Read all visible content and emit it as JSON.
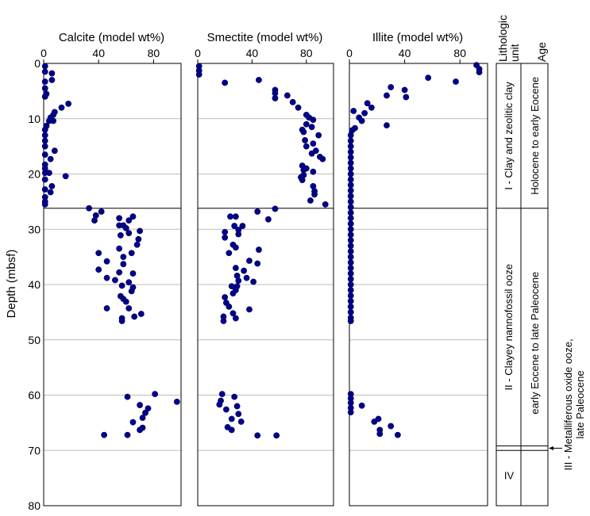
{
  "chart_data": {
    "type": "scatter",
    "ylabel": "Depth (mbsf)",
    "ylim": [
      0,
      80
    ],
    "yticks": [
      0,
      10,
      20,
      30,
      40,
      50,
      60,
      70,
      80
    ],
    "gridlines": [
      10,
      20,
      30,
      40,
      50,
      60,
      70
    ],
    "unit_boundaries": [
      26.2
    ],
    "marker_color": "#00008b",
    "panels": [
      {
        "name": "calcite",
        "title": "Calcite (model wt%)",
        "xlim": [
          0,
          100
        ],
        "xticks": [
          0,
          40,
          80
        ],
        "points": [
          {
            "x": 1,
            "y": 0.5
          },
          {
            "x": 1,
            "y": 1.5
          },
          {
            "x": 6,
            "y": 1.8
          },
          {
            "x": 6,
            "y": 3.0
          },
          {
            "x": 1,
            "y": 3.3
          },
          {
            "x": 1,
            "y": 4.5
          },
          {
            "x": 2,
            "y": 5.5
          },
          {
            "x": 1,
            "y": 6.0
          },
          {
            "x": 18,
            "y": 7.3
          },
          {
            "x": 13,
            "y": 8.0
          },
          {
            "x": 8,
            "y": 8.8
          },
          {
            "x": 7,
            "y": 9.3
          },
          {
            "x": 5,
            "y": 9.8
          },
          {
            "x": 4,
            "y": 10.4
          },
          {
            "x": 7,
            "y": 10.4
          },
          {
            "x": 2,
            "y": 11.3
          },
          {
            "x": 1,
            "y": 12.0
          },
          {
            "x": 1,
            "y": 13.0
          },
          {
            "x": 1,
            "y": 14.0
          },
          {
            "x": 1,
            "y": 15.0
          },
          {
            "x": 8,
            "y": 15.8
          },
          {
            "x": 1,
            "y": 16.5
          },
          {
            "x": 5,
            "y": 17.3
          },
          {
            "x": 1,
            "y": 18.3
          },
          {
            "x": 1,
            "y": 19.0
          },
          {
            "x": 1,
            "y": 19.8
          },
          {
            "x": 4,
            "y": 19.8
          },
          {
            "x": 16,
            "y": 20.4
          },
          {
            "x": 1,
            "y": 21.0
          },
          {
            "x": 6,
            "y": 22.2
          },
          {
            "x": 1,
            "y": 22.8
          },
          {
            "x": 5,
            "y": 23.3
          },
          {
            "x": 1,
            "y": 24.2
          },
          {
            "x": 1,
            "y": 25.0
          },
          {
            "x": 1,
            "y": 25.5
          },
          {
            "x": 33,
            "y": 26.2
          },
          {
            "x": 42,
            "y": 26.8
          },
          {
            "x": 38,
            "y": 27.5
          },
          {
            "x": 65,
            "y": 27.7
          },
          {
            "x": 55,
            "y": 28.0
          },
          {
            "x": 37,
            "y": 28.4
          },
          {
            "x": 62,
            "y": 28.4
          },
          {
            "x": 55,
            "y": 29.3
          },
          {
            "x": 58,
            "y": 29.3
          },
          {
            "x": 60,
            "y": 29.8
          },
          {
            "x": 70,
            "y": 30.3
          },
          {
            "x": 62,
            "y": 30.7
          },
          {
            "x": 56,
            "y": 31.1
          },
          {
            "x": 69,
            "y": 31.8
          },
          {
            "x": 68,
            "y": 32.8
          },
          {
            "x": 55,
            "y": 33.5
          },
          {
            "x": 40,
            "y": 34.3
          },
          {
            "x": 64,
            "y": 34.3
          },
          {
            "x": 58,
            "y": 35.0
          },
          {
            "x": 46,
            "y": 35.8
          },
          {
            "x": 58,
            "y": 36.3
          },
          {
            "x": 40,
            "y": 37.3
          },
          {
            "x": 55,
            "y": 37.8
          },
          {
            "x": 65,
            "y": 38.0
          },
          {
            "x": 46,
            "y": 38.8
          },
          {
            "x": 52,
            "y": 39.2
          },
          {
            "x": 62,
            "y": 39.6
          },
          {
            "x": 57,
            "y": 40.2
          },
          {
            "x": 65,
            "y": 40.5
          },
          {
            "x": 64,
            "y": 41.2
          },
          {
            "x": 56,
            "y": 42.1
          },
          {
            "x": 58,
            "y": 42.6
          },
          {
            "x": 60,
            "y": 43.1
          },
          {
            "x": 46,
            "y": 44.3
          },
          {
            "x": 62,
            "y": 44.3
          },
          {
            "x": 71,
            "y": 45.3
          },
          {
            "x": 66,
            "y": 45.8
          },
          {
            "x": 57,
            "y": 46.1
          },
          {
            "x": 57,
            "y": 46.6
          },
          {
            "x": 61,
            "y": 60.3
          },
          {
            "x": 81,
            "y": 59.8
          },
          {
            "x": 97,
            "y": 61.2
          },
          {
            "x": 70,
            "y": 61.8
          },
          {
            "x": 76,
            "y": 62.4
          },
          {
            "x": 74,
            "y": 63.2
          },
          {
            "x": 72,
            "y": 64.1
          },
          {
            "x": 65,
            "y": 64.9
          },
          {
            "x": 72,
            "y": 65.9
          },
          {
            "x": 70,
            "y": 66.3
          },
          {
            "x": 44,
            "y": 67.2
          },
          {
            "x": 61,
            "y": 67.2
          }
        ]
      },
      {
        "name": "smectite",
        "title": "Smectite (model wt%)",
        "xlim": [
          0,
          100
        ],
        "xticks": [
          0,
          40,
          80
        ],
        "points": [
          {
            "x": 1,
            "y": 0.5
          },
          {
            "x": 1,
            "y": 1.3
          },
          {
            "x": 1,
            "y": 2.0
          },
          {
            "x": 45,
            "y": 3.0
          },
          {
            "x": 20,
            "y": 3.5
          },
          {
            "x": 57,
            "y": 4.8
          },
          {
            "x": 57,
            "y": 5.4
          },
          {
            "x": 66,
            "y": 5.8
          },
          {
            "x": 57,
            "y": 6.3
          },
          {
            "x": 70,
            "y": 7.0
          },
          {
            "x": 74,
            "y": 8.0
          },
          {
            "x": 80,
            "y": 9.3
          },
          {
            "x": 82,
            "y": 9.8
          },
          {
            "x": 85,
            "y": 10.2
          },
          {
            "x": 80,
            "y": 11.0
          },
          {
            "x": 84,
            "y": 11.5
          },
          {
            "x": 77,
            "y": 12.0
          },
          {
            "x": 78,
            "y": 12.4
          },
          {
            "x": 89,
            "y": 13.0
          },
          {
            "x": 79,
            "y": 13.9
          },
          {
            "x": 85,
            "y": 14.5
          },
          {
            "x": 80,
            "y": 15.0
          },
          {
            "x": 87,
            "y": 15.8
          },
          {
            "x": 84,
            "y": 16.3
          },
          {
            "x": 90,
            "y": 16.9
          },
          {
            "x": 92,
            "y": 17.3
          },
          {
            "x": 77,
            "y": 18.5
          },
          {
            "x": 80,
            "y": 19.0
          },
          {
            "x": 78,
            "y": 19.3
          },
          {
            "x": 85,
            "y": 19.6
          },
          {
            "x": 78,
            "y": 20.2
          },
          {
            "x": 76,
            "y": 20.6
          },
          {
            "x": 77,
            "y": 21.1
          },
          {
            "x": 85,
            "y": 22.2
          },
          {
            "x": 86,
            "y": 23.1
          },
          {
            "x": 86,
            "y": 23.7
          },
          {
            "x": 83,
            "y": 24.8
          },
          {
            "x": 94,
            "y": 25.5
          },
          {
            "x": 57,
            "y": 26.3
          },
          {
            "x": 44,
            "y": 26.8
          },
          {
            "x": 24,
            "y": 27.7
          },
          {
            "x": 28,
            "y": 27.7
          },
          {
            "x": 52,
            "y": 28.2
          },
          {
            "x": 27,
            "y": 29.4
          },
          {
            "x": 33,
            "y": 29.4
          },
          {
            "x": 30,
            "y": 30.1
          },
          {
            "x": 20,
            "y": 30.5
          },
          {
            "x": 30,
            "y": 30.9
          },
          {
            "x": 20,
            "y": 31.5
          },
          {
            "x": 26,
            "y": 32.8
          },
          {
            "x": 28,
            "y": 33.3
          },
          {
            "x": 45,
            "y": 33.7
          },
          {
            "x": 23,
            "y": 34.3
          },
          {
            "x": 38,
            "y": 35.7
          },
          {
            "x": 44,
            "y": 36.2
          },
          {
            "x": 28,
            "y": 37.0
          },
          {
            "x": 34,
            "y": 37.5
          },
          {
            "x": 29,
            "y": 38.4
          },
          {
            "x": 36,
            "y": 38.8
          },
          {
            "x": 30,
            "y": 39.3
          },
          {
            "x": 41,
            "y": 39.5
          },
          {
            "x": 25,
            "y": 40.3
          },
          {
            "x": 29,
            "y": 40.3
          },
          {
            "x": 28,
            "y": 41.0
          },
          {
            "x": 26,
            "y": 41.6
          },
          {
            "x": 20,
            "y": 42.3
          },
          {
            "x": 21,
            "y": 43.3
          },
          {
            "x": 23,
            "y": 44.0
          },
          {
            "x": 38,
            "y": 44.5
          },
          {
            "x": 26,
            "y": 45.2
          },
          {
            "x": 19,
            "y": 45.8
          },
          {
            "x": 28,
            "y": 46.1
          },
          {
            "x": 19,
            "y": 46.6
          },
          {
            "x": 18,
            "y": 59.8
          },
          {
            "x": 27,
            "y": 60.3
          },
          {
            "x": 17,
            "y": 61.0
          },
          {
            "x": 16,
            "y": 61.7
          },
          {
            "x": 29,
            "y": 62.0
          },
          {
            "x": 21,
            "y": 62.6
          },
          {
            "x": 30,
            "y": 63.4
          },
          {
            "x": 25,
            "y": 64.3
          },
          {
            "x": 32,
            "y": 64.8
          },
          {
            "x": 22,
            "y": 65.8
          },
          {
            "x": 25,
            "y": 66.3
          },
          {
            "x": 44,
            "y": 67.3
          },
          {
            "x": 58,
            "y": 67.3
          }
        ]
      },
      {
        "name": "illite",
        "title": "Illite (model wt%)",
        "xlim": [
          0,
          100
        ],
        "xticks": [
          0,
          40,
          80
        ],
        "points": [
          {
            "x": 92,
            "y": 0.3
          },
          {
            "x": 94,
            "y": 1.0
          },
          {
            "x": 94,
            "y": 1.6
          },
          {
            "x": 57,
            "y": 2.6
          },
          {
            "x": 77,
            "y": 3.3
          },
          {
            "x": 30,
            "y": 4.3
          },
          {
            "x": 40,
            "y": 4.8
          },
          {
            "x": 27,
            "y": 5.8
          },
          {
            "x": 41,
            "y": 6.1
          },
          {
            "x": 13,
            "y": 7.2
          },
          {
            "x": 16,
            "y": 8.0
          },
          {
            "x": 3,
            "y": 8.6
          },
          {
            "x": 11,
            "y": 9.0
          },
          {
            "x": 7,
            "y": 9.8
          },
          {
            "x": 9,
            "y": 10.4
          },
          {
            "x": 27,
            "y": 11.2
          },
          {
            "x": 4,
            "y": 11.7
          },
          {
            "x": 2,
            "y": 12.1
          },
          {
            "x": 1,
            "y": 13.0
          },
          {
            "x": 1,
            "y": 14.0
          },
          {
            "x": 1,
            "y": 15.0
          },
          {
            "x": 1,
            "y": 16.0
          },
          {
            "x": 1,
            "y": 17.0
          },
          {
            "x": 1,
            "y": 18.0
          },
          {
            "x": 1,
            "y": 19.0
          },
          {
            "x": 1,
            "y": 20.0
          },
          {
            "x": 1,
            "y": 21.0
          },
          {
            "x": 1,
            "y": 22.0
          },
          {
            "x": 1,
            "y": 23.0
          },
          {
            "x": 1,
            "y": 24.0
          },
          {
            "x": 1,
            "y": 25.0
          },
          {
            "x": 1,
            "y": 26.0
          },
          {
            "x": 1,
            "y": 27.0
          },
          {
            "x": 1,
            "y": 28.0
          },
          {
            "x": 1,
            "y": 29.0
          },
          {
            "x": 1,
            "y": 30.0
          },
          {
            "x": 1,
            "y": 31.0
          },
          {
            "x": 1,
            "y": 32.0
          },
          {
            "x": 1,
            "y": 33.0
          },
          {
            "x": 1,
            "y": 34.0
          },
          {
            "x": 1,
            "y": 35.0
          },
          {
            "x": 1,
            "y": 36.0
          },
          {
            "x": 1,
            "y": 37.0
          },
          {
            "x": 1,
            "y": 38.0
          },
          {
            "x": 1,
            "y": 39.0
          },
          {
            "x": 1,
            "y": 40.0
          },
          {
            "x": 1,
            "y": 41.0
          },
          {
            "x": 1,
            "y": 42.0
          },
          {
            "x": 1,
            "y": 43.0
          },
          {
            "x": 1,
            "y": 44.0
          },
          {
            "x": 1,
            "y": 45.0
          },
          {
            "x": 1,
            "y": 46.0
          },
          {
            "x": 1,
            "y": 46.6
          },
          {
            "x": 1,
            "y": 59.8
          },
          {
            "x": 1,
            "y": 60.6
          },
          {
            "x": 1,
            "y": 61.4
          },
          {
            "x": 9,
            "y": 61.9
          },
          {
            "x": 1,
            "y": 62.3
          },
          {
            "x": 1,
            "y": 63.1
          },
          {
            "x": 21,
            "y": 64.3
          },
          {
            "x": 18,
            "y": 64.8
          },
          {
            "x": 30,
            "y": 65.6
          },
          {
            "x": 22,
            "y": 66.3
          },
          {
            "x": 22,
            "y": 67.0
          },
          {
            "x": 35,
            "y": 67.2
          }
        ]
      }
    ],
    "lithology": {
      "header_unit": "Lithologic unit",
      "header_age": "Age",
      "units": [
        {
          "id": "unit-1",
          "label": "I - Clay and zeolitic clay",
          "age": "Holocene to early Eocene",
          "top": 0,
          "bottom": 26.2
        },
        {
          "id": "unit-2",
          "label": "II - Clayey nannofossil ooze",
          "age": "early Eocene to late Paleocene",
          "top": 26.2,
          "bottom": 69.2
        },
        {
          "id": "unit-3",
          "label": "III - Metalliferous oxide ooze, late Paleocene",
          "age": "",
          "top": 69.2,
          "bottom": 70.0
        },
        {
          "id": "unit-4",
          "label": "IV",
          "age": "",
          "top": 70.0,
          "bottom": 80
        }
      ]
    }
  }
}
